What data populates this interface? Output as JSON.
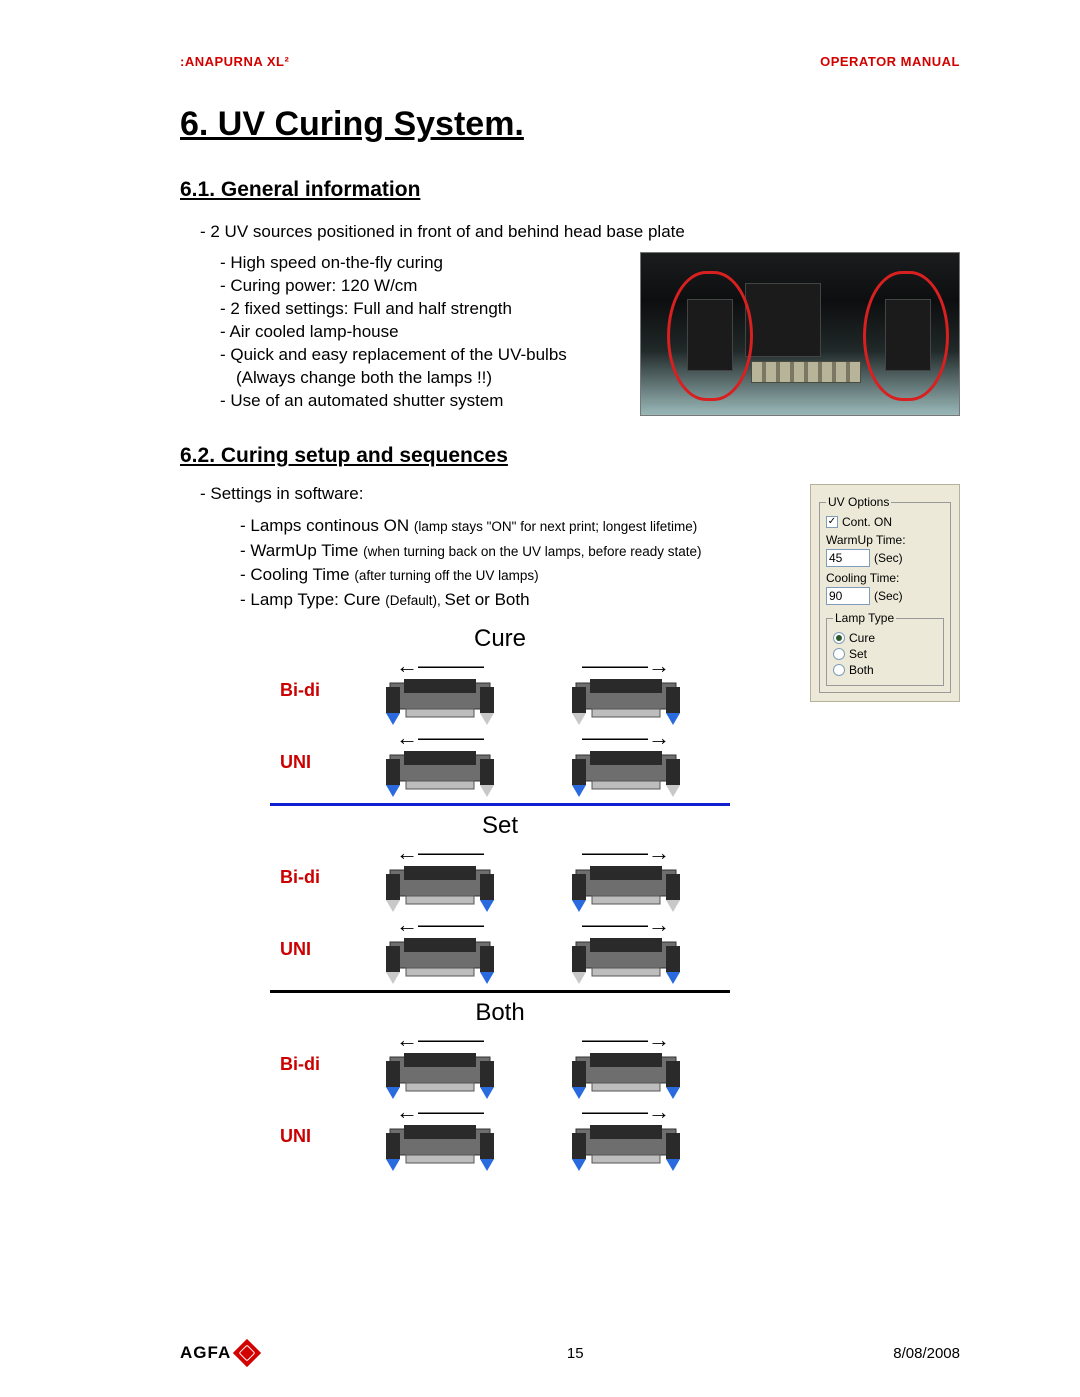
{
  "header": {
    "left": ":ANAPURNA XL²",
    "right": "OPERATOR MANUAL"
  },
  "title": "6. UV Curing System.",
  "section61": {
    "heading": "6.1. General information",
    "intro": "- 2 UV sources positioned in front of and behind head base plate",
    "bullets": [
      "- High speed on-the-fly curing",
      "- Curing power: 120 W/cm",
      "- 2 fixed settings: Full and half strength",
      "- Air cooled lamp-house",
      "- Quick and easy replacement of the UV-bulbs",
      "  (Always change both the lamps !!)",
      "- Use of an automated shutter system"
    ]
  },
  "section62": {
    "heading": "6.2. Curing setup and sequences",
    "settingsLabel": "- Settings in software:",
    "items": [
      {
        "main": "- Lamps continous ON ",
        "note": "(lamp stays \"ON\" for next print; longest lifetime)"
      },
      {
        "main": "- WarmUp Time ",
        "note": "(when turning back on the UV lamps, before ready state)"
      },
      {
        "main": "- Cooling Time ",
        "note": "(after turning off the UV lamps)"
      },
      {
        "main": "- Lamp Type: Cure ",
        "note": "(Default), ",
        "tail": "Set or  Both"
      }
    ]
  },
  "uvOptions": {
    "groupLabel": "UV Options",
    "contOn": {
      "label": "Cont. ON",
      "checked": true
    },
    "warmup": {
      "label": "WarmUp Time:",
      "value": "45",
      "unit": "(Sec)"
    },
    "cooling": {
      "label": "Cooling Time:",
      "value": "90",
      "unit": "(Sec)"
    },
    "lampType": {
      "label": "Lamp Type",
      "options": [
        {
          "label": "Cure",
          "selected": true
        },
        {
          "label": "Set",
          "selected": false
        },
        {
          "label": "Both",
          "selected": false
        }
      ]
    }
  },
  "diagram": {
    "sections": [
      {
        "title": "Cure",
        "divider": "blue",
        "rows": [
          {
            "mode": "Bi-di",
            "left": {
              "arrow": "←",
              "lampLeft": true,
              "lampRight": false
            },
            "right": {
              "arrow": "→",
              "lampLeft": false,
              "lampRight": true
            }
          },
          {
            "mode": "UNI",
            "left": {
              "arrow": "←",
              "lampLeft": true,
              "lampRight": false
            },
            "right": {
              "arrow": "→",
              "lampLeft": true,
              "lampRight": false
            }
          }
        ]
      },
      {
        "title": "Set",
        "divider": "black",
        "rows": [
          {
            "mode": "Bi-di",
            "left": {
              "arrow": "←",
              "lampLeft": false,
              "lampRight": true
            },
            "right": {
              "arrow": "→",
              "lampLeft": true,
              "lampRight": false
            }
          },
          {
            "mode": "UNI",
            "left": {
              "arrow": "←",
              "lampLeft": false,
              "lampRight": true
            },
            "right": {
              "arrow": "→",
              "lampLeft": false,
              "lampRight": true
            }
          }
        ]
      },
      {
        "title": "Both",
        "divider": "none",
        "rows": [
          {
            "mode": "Bi-di",
            "left": {
              "arrow": "←",
              "lampLeft": true,
              "lampRight": true
            },
            "right": {
              "arrow": "→",
              "lampLeft": true,
              "lampRight": true
            }
          },
          {
            "mode": "UNI",
            "left": {
              "arrow": "←",
              "lampLeft": true,
              "lampRight": true
            },
            "right": {
              "arrow": "→",
              "lampLeft": true,
              "lampRight": true
            }
          }
        ]
      }
    ],
    "colors": {
      "lampOn": "#2a6adf",
      "lampOff": "#c8c8c8",
      "bodyDark": "#2a2a2a",
      "bodyMid": "#6e6e6e",
      "bodyLight": "#bdbdbd"
    }
  },
  "footer": {
    "logoText": "AGFA",
    "pageNumber": "15",
    "date": "8/08/2008"
  }
}
